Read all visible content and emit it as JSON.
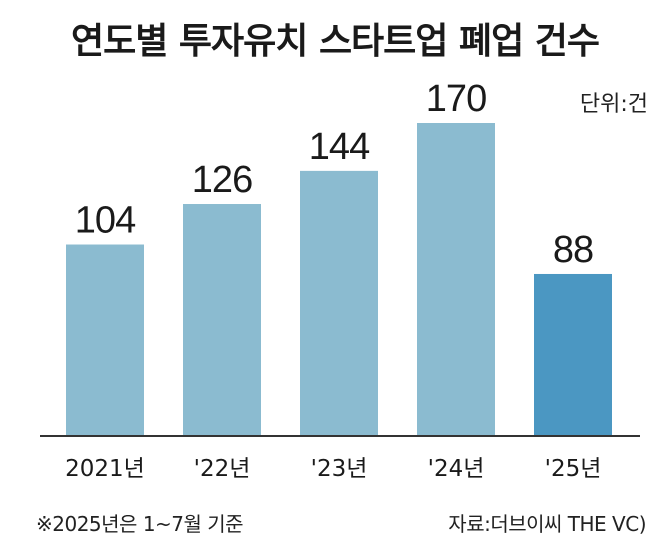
{
  "chart_data": {
    "type": "bar",
    "title": "연도별 투자유치 스타트업 폐업 건수",
    "unit": "단위:건",
    "categories": [
      "2021년",
      "'22년",
      "'23년",
      "'24년",
      "'25년"
    ],
    "values": [
      104,
      126,
      144,
      170,
      88
    ],
    "colors": [
      "#8bbbd0",
      "#8bbbd0",
      "#8bbbd0",
      "#8bbbd0",
      "#4b97c2"
    ],
    "axis_color": "#333333",
    "footnote": "※2025년은 1~7월 기준",
    "source": "자료:더브이씨 THE VC)"
  }
}
